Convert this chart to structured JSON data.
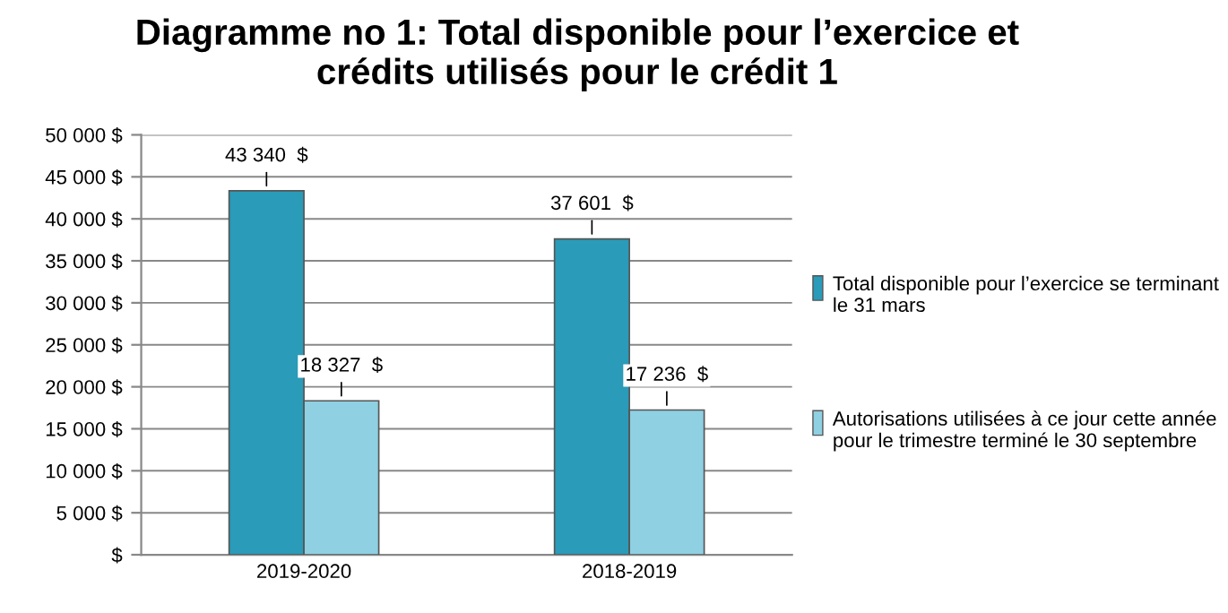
{
  "chart_data": {
    "type": "bar",
    "title": "Diagramme no 1: Total disponible pour l’exercice et\ncrédits utilisés pour le crédit 1",
    "categories": [
      "2019-2020",
      "2018-2019"
    ],
    "series": [
      {
        "name": "Total disponible pour l’exercice se terminant le 31 mars",
        "color": "#2a9bb8",
        "values": [
          43340,
          37601
        ],
        "value_labels": [
          "43 340  $",
          "37 601  $"
        ]
      },
      {
        "name": "Autorisations utilisées à ce jour cette année pour le trimestre terminé le 30 septembre",
        "color": "#8fd0e2",
        "values": [
          18327,
          17236
        ],
        "value_labels": [
          "18 327  $",
          "17 236  $"
        ]
      }
    ],
    "ylim": [
      0,
      50000
    ],
    "yticks": [
      {
        "value": 0,
        "label": "$"
      },
      {
        "value": 5000,
        "label": "5 000 $"
      },
      {
        "value": 10000,
        "label": "10 000 $"
      },
      {
        "value": 15000,
        "label": "15 000 $"
      },
      {
        "value": 20000,
        "label": "20 000 $"
      },
      {
        "value": 25000,
        "label": "25 000 $"
      },
      {
        "value": 30000,
        "label": "30 000 $"
      },
      {
        "value": 35000,
        "label": "35 000 $"
      },
      {
        "value": 40000,
        "label": "40 000 $"
      },
      {
        "value": 45000,
        "label": "45 000 $"
      },
      {
        "value": 50000,
        "label": "50 000 $"
      }
    ],
    "grid": "y",
    "legend": "right"
  }
}
